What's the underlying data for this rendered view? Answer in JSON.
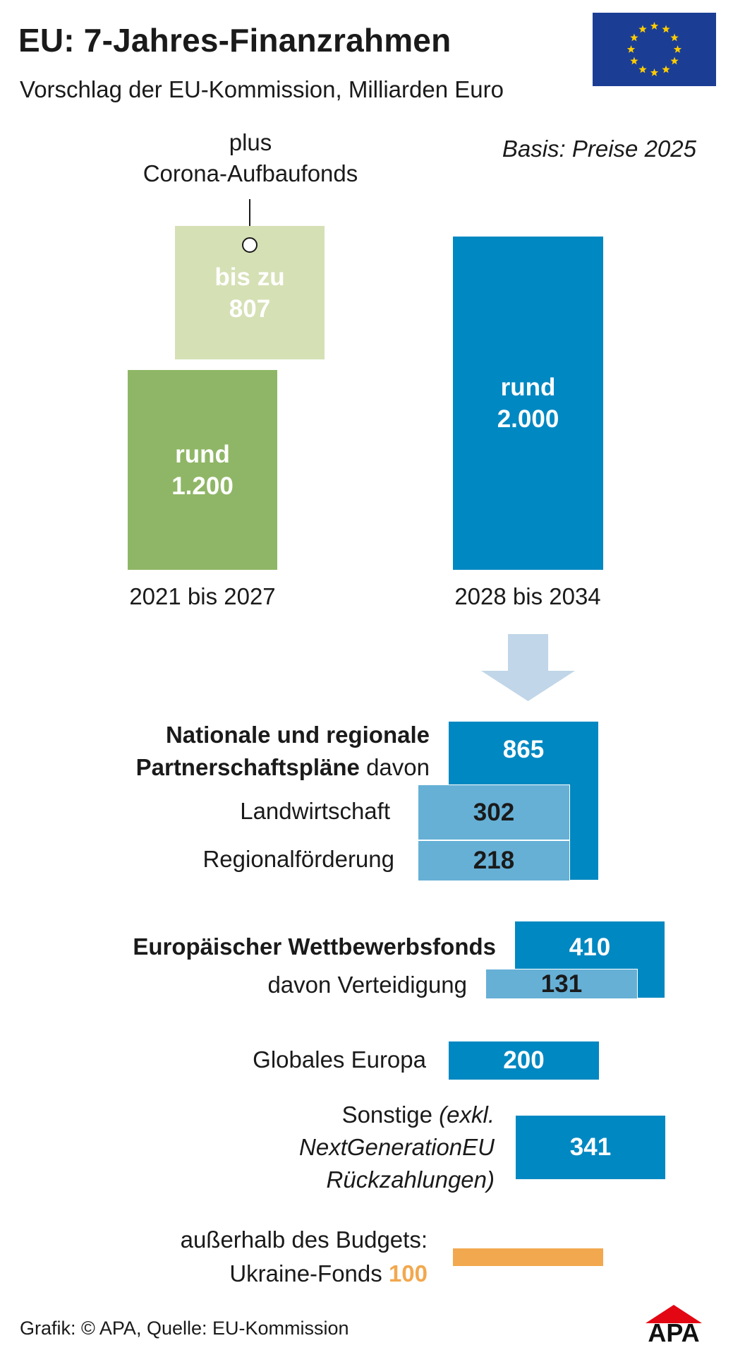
{
  "header": {
    "title": "EU: 7-Jahres-Finanzrahmen",
    "subtitle": "Vorschlag der EU-Kommission, Milliarden Euro",
    "basis": "Basis: Preise 2025"
  },
  "colors": {
    "green": "#8fb666",
    "light_green": "#d5e0b5",
    "blue": "#0088c2",
    "light_blue": "#66b0d6",
    "arrow": "#c1d6e8",
    "orange": "#f2a84e",
    "flag_blue": "#1b3e94",
    "flag_star": "#ffcc00",
    "logo_red": "#e30613"
  },
  "top": {
    "corona_note_line1": "plus",
    "corona_note_line2": "Corona-Aufbaufonds",
    "corona_line1": "bis zu",
    "corona_line2": "807",
    "mff1_line1": "rund",
    "mff1_line2": "1.200",
    "mff2_line1": "rund",
    "mff2_line2": "2.000",
    "period1": "2021 bis 2027",
    "period2": "2028 bis 2034"
  },
  "breakdown": {
    "national_bold_1": "Nationale und regionale",
    "national_bold_2": "Partnerschaftspläne",
    "national_suffix": " davon",
    "national_value": "865",
    "agriculture_label": "Landwirtschaft",
    "agriculture_value": "302",
    "regional_label": "Regionalförderung",
    "regional_value": "218",
    "competition_label": "Europäischer Wettbewerbsfonds",
    "competition_value": "410",
    "defence_label": "davon Verteidigung",
    "defence_value": "131",
    "global_label": "Globales Europa",
    "global_value": "200",
    "other_label_1": "Sonstige ",
    "other_label_1_italic": "(exkl.",
    "other_label_2": "NextGenerationEU",
    "other_label_3": "Rückzahlungen)",
    "other_value": "341",
    "ukraine_label_1": "außerhalb des Budgets:",
    "ukraine_label_2": "Ukraine-Fonds ",
    "ukraine_value": "100"
  },
  "footer": {
    "credit": "Grafik: © APA, Quelle: EU-Kommission",
    "logo": "APA"
  },
  "chart_data": {
    "type": "bar",
    "title": "EU: 7-Jahres-Finanzrahmen",
    "subtitle": "Vorschlag der EU-Kommission, Milliarden Euro",
    "unit": "Milliarden Euro",
    "note": "Basis: Preise 2025",
    "categories": [
      "2021 bis 2027",
      "2028 bis 2034"
    ],
    "series": [
      {
        "name": "",
        "values": [
          1200,
          2000
        ]
      },
      {
        "name": "plus Corona-Aufbaufonds",
        "values": [
          807,
          null
        ]
      }
    ],
    "breakdown_2028_2034": [
      {
        "label": "Nationale und regionale Partnerschaftspläne",
        "value": 865,
        "sub": [
          {
            "label": "Landwirtschaft",
            "value": 302
          },
          {
            "label": "Regionalförderung",
            "value": 218
          }
        ]
      },
      {
        "label": "Europäischer Wettbewerbsfonds",
        "value": 410,
        "sub": [
          {
            "label": "davon Verteidigung",
            "value": 131
          }
        ]
      },
      {
        "label": "Globales Europa",
        "value": 200
      },
      {
        "label": "Sonstige (exkl. NextGenerationEU Rückzahlungen)",
        "value": 341
      },
      {
        "label": "außerhalb des Budgets: Ukraine-Fonds",
        "value": 100
      }
    ]
  }
}
